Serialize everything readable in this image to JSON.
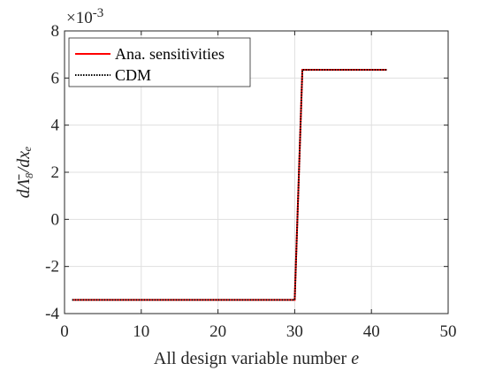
{
  "chart_data": {
    "type": "line",
    "title": "",
    "xlabel_prefix": "All design variable number ",
    "xlabel_var": "e",
    "ylabel": "dΛ̄₈/dxₑ",
    "y_exponent": "×10",
    "y_exponent_power": "-3",
    "xlim": [
      0,
      50
    ],
    "ylim": [
      -4,
      8
    ],
    "x_ticks": [
      0,
      10,
      20,
      30,
      40,
      50
    ],
    "y_ticks": [
      -4,
      -2,
      0,
      2,
      4,
      6,
      8
    ],
    "x_tick_labels": [
      "0",
      "10",
      "20",
      "30",
      "40",
      "50"
    ],
    "y_tick_labels": [
      "-4",
      "-2",
      "0",
      "2",
      "4",
      "6",
      "8"
    ],
    "grid": true,
    "legend_position": "top-left",
    "series": [
      {
        "name": "Ana. sensitivities",
        "color": "#ff0000",
        "style": "solid",
        "x": [
          1,
          30,
          31,
          42
        ],
        "y": [
          -3.42,
          -3.42,
          6.35,
          6.35
        ]
      },
      {
        "name": "CDM",
        "color": "#000000",
        "style": "dotted",
        "x": [
          1,
          30,
          31,
          42
        ],
        "y": [
          -3.42,
          -3.42,
          6.35,
          6.35
        ]
      }
    ]
  }
}
